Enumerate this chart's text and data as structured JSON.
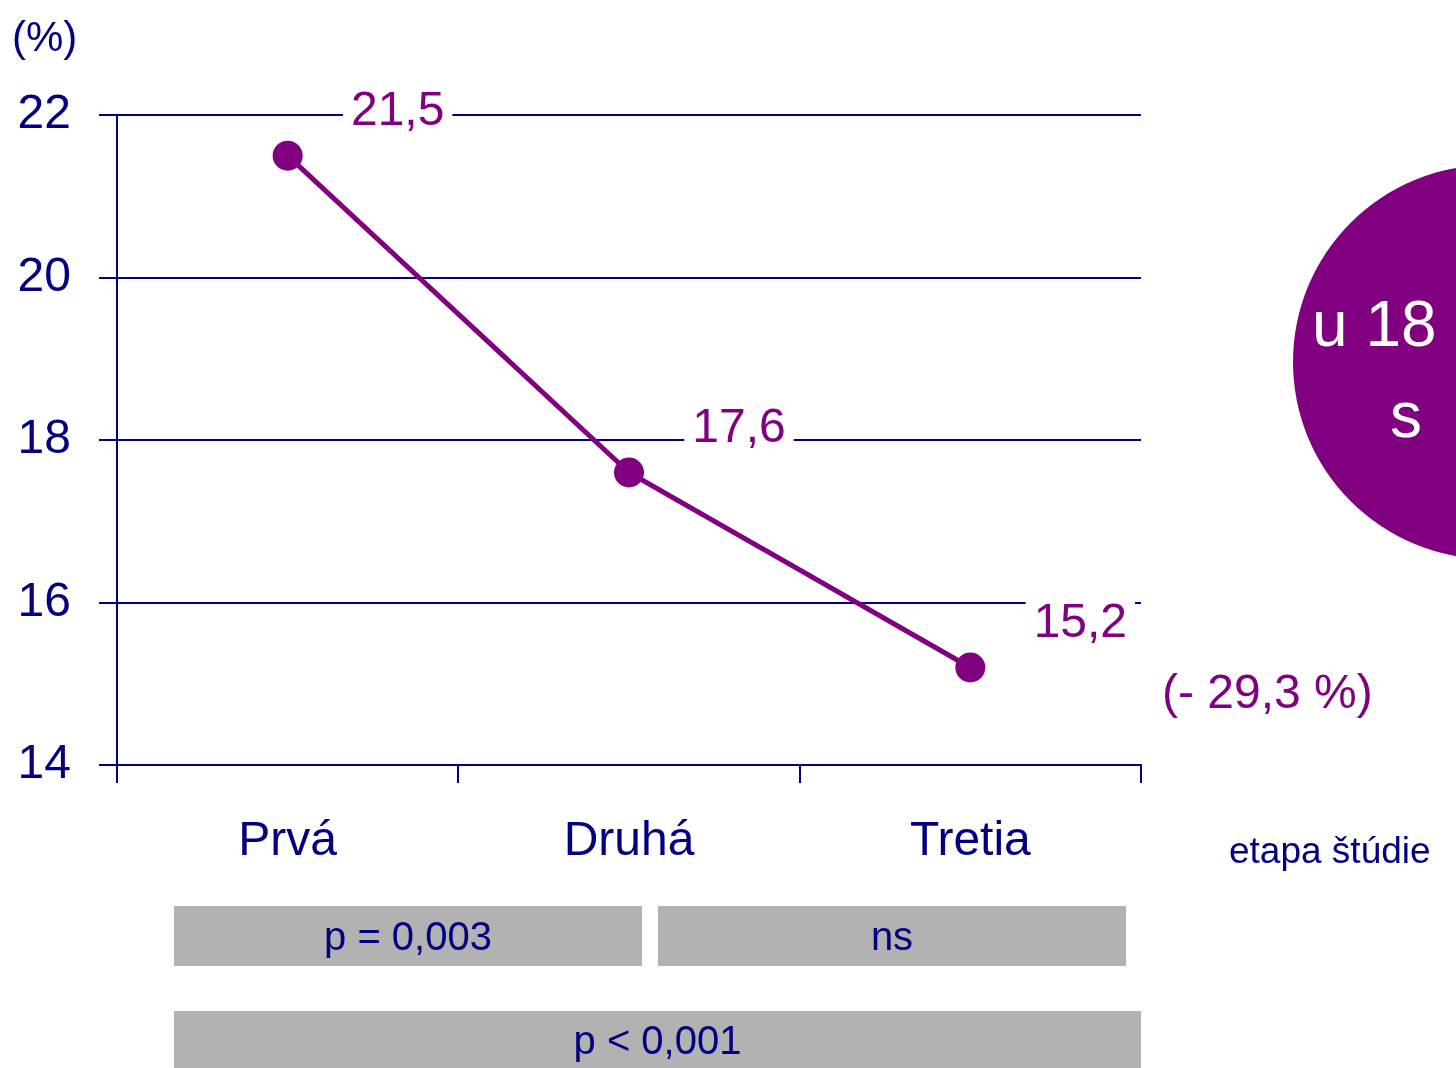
{
  "chart_data": {
    "type": "line",
    "ylabel": "(%)",
    "xlabel": "etapa štúdie",
    "categories": [
      "Prvá",
      "Druhá",
      "Tretia"
    ],
    "series": [
      {
        "color": "#800080",
        "values": [
          21.5,
          17.6,
          15.2
        ],
        "value_labels": [
          "21,5",
          "17,6",
          "15,2"
        ]
      }
    ],
    "ylim": [
      14,
      22
    ],
    "yticks": [
      14,
      16,
      18,
      20,
      22
    ],
    "grid": "y",
    "legend": false,
    "marker": "circle",
    "line_style": "solid",
    "annotations": [
      "(- 29,3 %)",
      "u 18",
      "s",
      "p = 0,003",
      "ns",
      "p < 0,001"
    ]
  }
}
